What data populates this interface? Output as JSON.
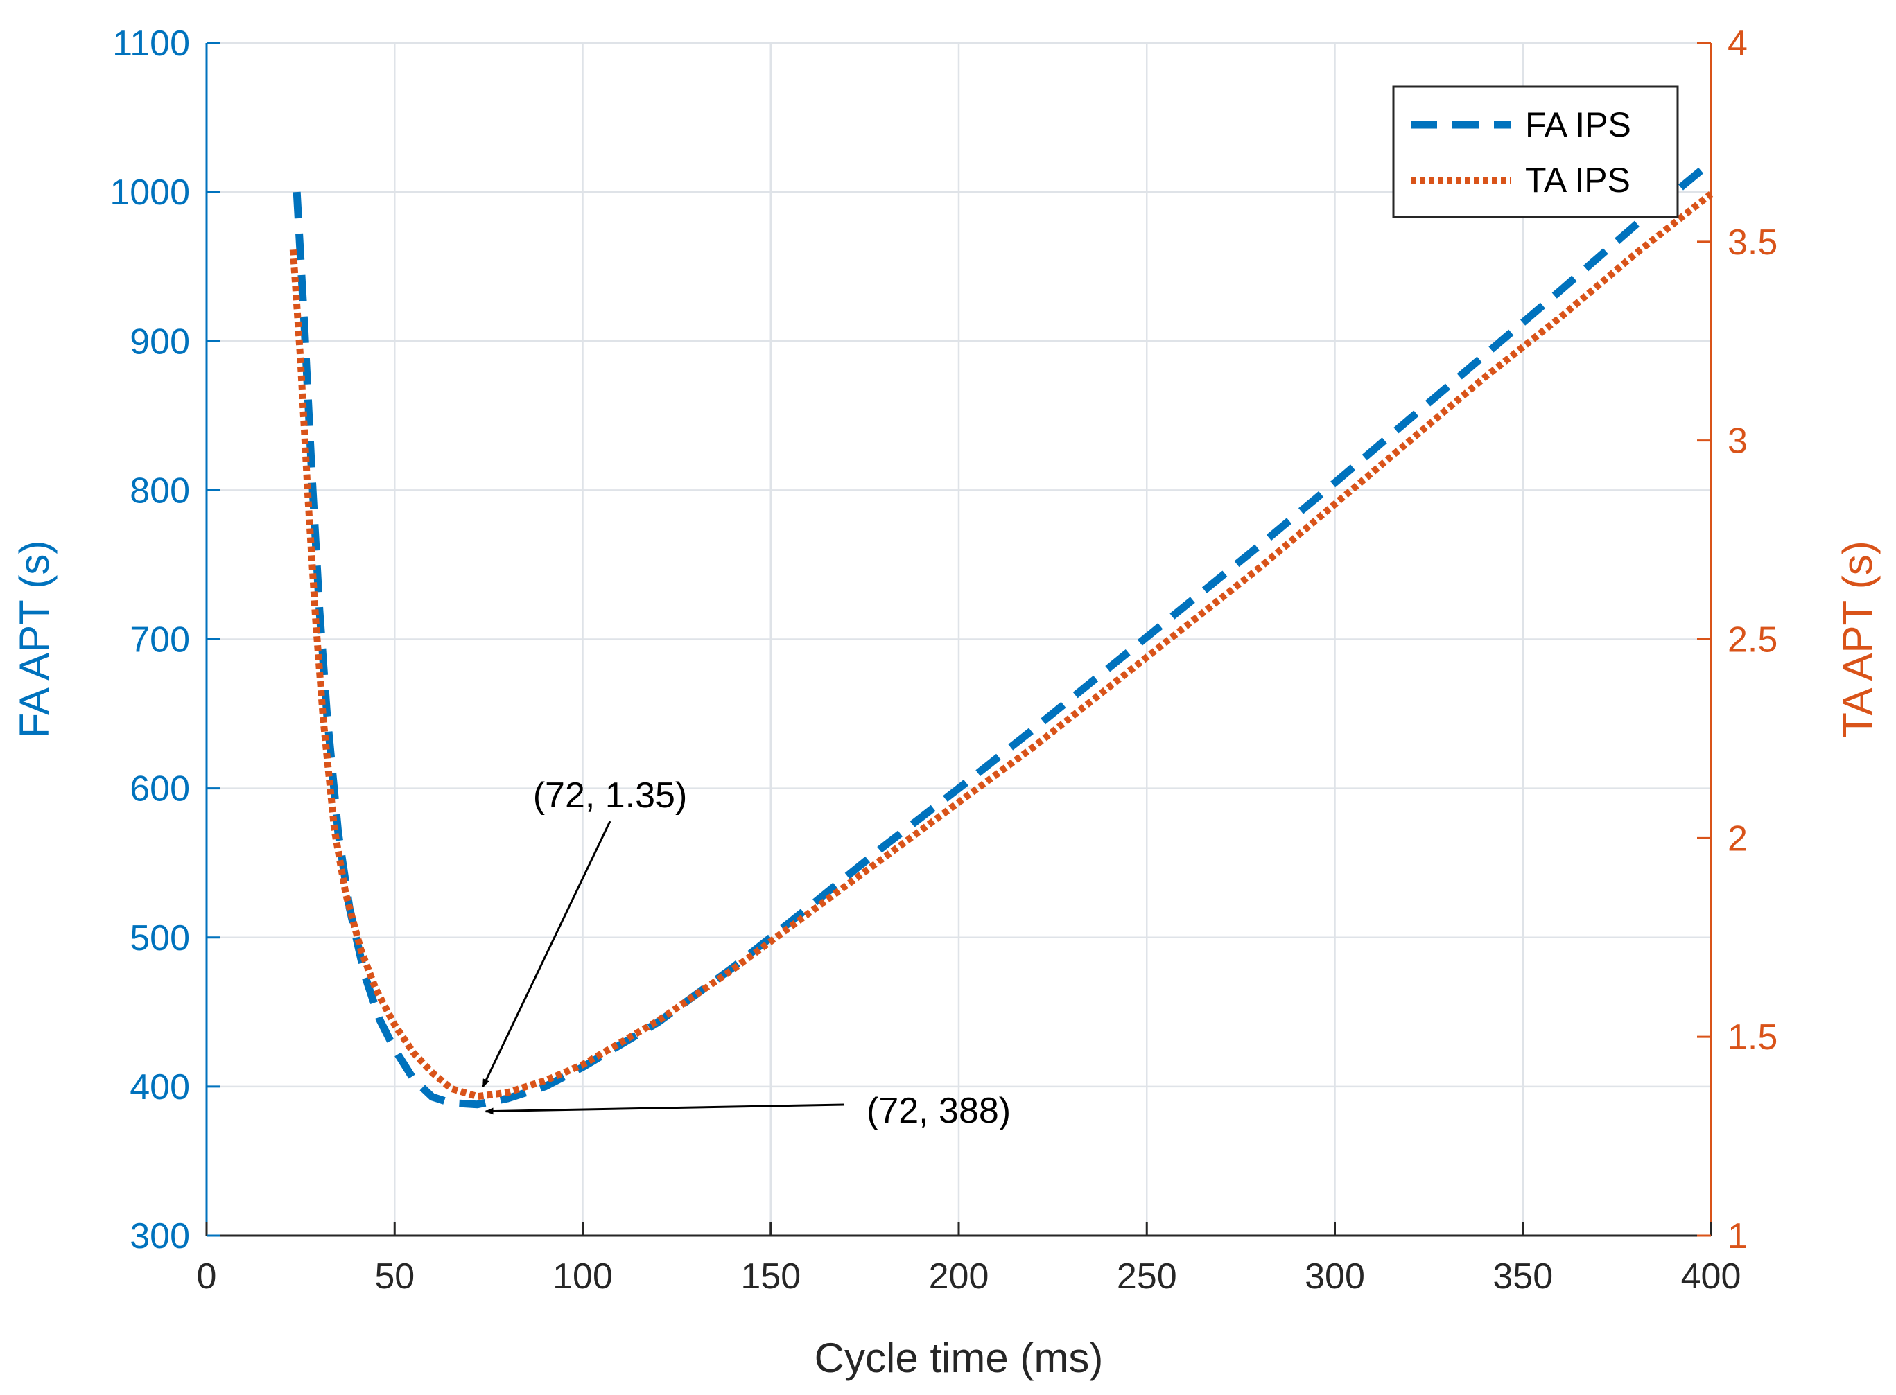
{
  "chart_data": {
    "type": "line",
    "xlabel": "Cycle time (ms)",
    "ylabel_left": "FA APT (s)",
    "ylabel_right": "TA APT (s)",
    "xlim": [
      0,
      400
    ],
    "ylim_left": [
      300,
      1100
    ],
    "ylim_right": [
      1,
      4
    ],
    "x_ticks": [
      "0",
      "50",
      "100",
      "150",
      "200",
      "250",
      "300",
      "350",
      "400"
    ],
    "y_ticks_left": [
      "300",
      "400",
      "500",
      "600",
      "700",
      "800",
      "900",
      "1000",
      "1100"
    ],
    "y_ticks_right": [
      "1",
      "1.5",
      "2",
      "2.5",
      "3",
      "3.5",
      "4"
    ],
    "grid": true,
    "legend_position": "top-right",
    "colors": {
      "fa": "#0072BD",
      "ta": "#D95319",
      "grid": "#dfe3e8",
      "axis": "#262626"
    },
    "series": [
      {
        "name": "FA IPS",
        "axis": "left",
        "style": "dashed",
        "x": [
          24,
          26,
          28,
          30,
          32,
          35,
          38,
          42,
          46,
          50,
          55,
          60,
          65,
          72,
          80,
          90,
          100,
          120,
          140,
          160,
          180,
          200,
          220,
          240,
          260,
          280,
          300,
          320,
          340,
          360,
          380,
          400
        ],
        "y": [
          1000,
          910,
          810,
          720,
          650,
          570,
          520,
          475,
          445,
          425,
          405,
          393,
          389,
          388,
          392,
          400,
          413,
          443,
          480,
          520,
          561,
          600,
          640,
          681,
          722,
          763,
          805,
          848,
          891,
          934,
          978,
          1020
        ]
      },
      {
        "name": "TA IPS",
        "axis": "right",
        "style": "dotted",
        "x": [
          23,
          25,
          27,
          29,
          31,
          34,
          37,
          41,
          45,
          50,
          55,
          60,
          65,
          72,
          80,
          90,
          100,
          120,
          140,
          160,
          180,
          200,
          220,
          240,
          260,
          280,
          300,
          320,
          340,
          360,
          380,
          400
        ],
        "y": [
          3.48,
          3.2,
          2.85,
          2.55,
          2.3,
          2.02,
          1.86,
          1.72,
          1.62,
          1.53,
          1.46,
          1.41,
          1.37,
          1.35,
          1.36,
          1.39,
          1.43,
          1.54,
          1.67,
          1.81,
          1.95,
          2.09,
          2.23,
          2.38,
          2.53,
          2.68,
          2.84,
          3.0,
          3.16,
          3.31,
          3.47,
          3.62
        ]
      }
    ],
    "annotations": [
      {
        "text": "(72, 1.35)",
        "x": 72,
        "y": 1.35,
        "axis": "right"
      },
      {
        "text": "(72, 388)",
        "x": 72,
        "y": 388,
        "axis": "left"
      }
    ]
  }
}
